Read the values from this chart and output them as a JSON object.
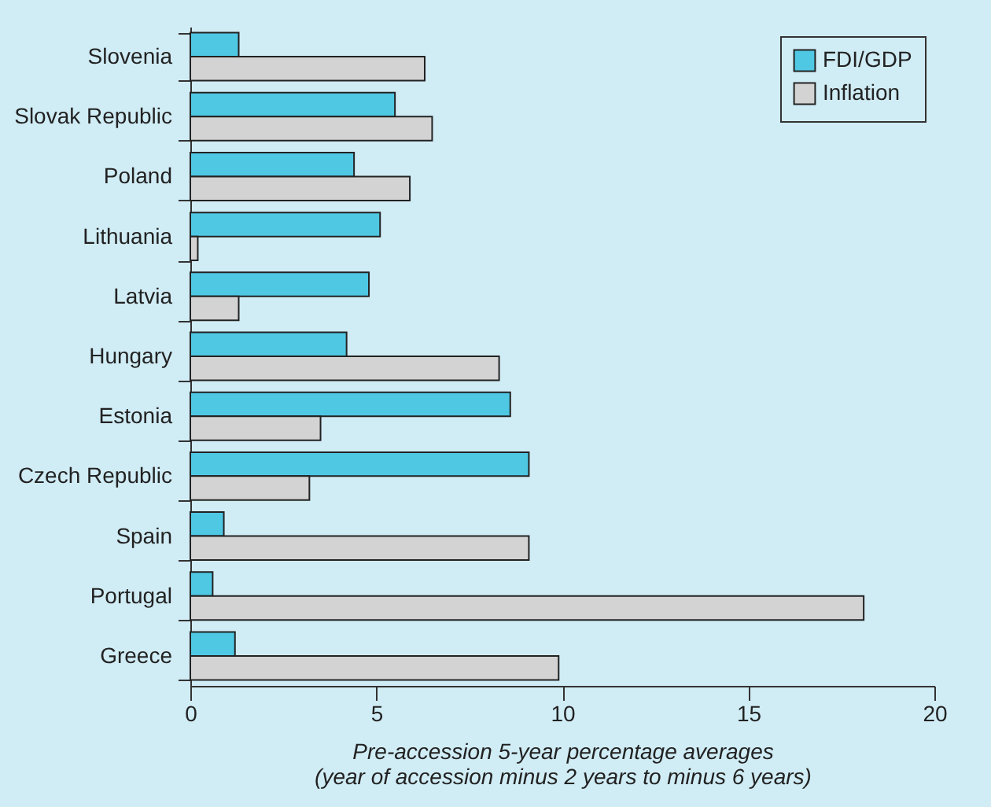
{
  "chart_data": {
    "type": "bar",
    "orientation": "horizontal",
    "categories": [
      "Slovenia",
      "Slovak Republic",
      "Poland",
      "Lithuania",
      "Latvia",
      "Hungary",
      "Estonia",
      "Czech Republic",
      "Spain",
      "Portugal",
      "Greece"
    ],
    "series": [
      {
        "name": "FDI/GDP",
        "color": "#4fc8e4",
        "values": [
          1.3,
          5.5,
          4.4,
          5.1,
          4.8,
          4.2,
          8.6,
          9.1,
          0.9,
          0.6,
          1.2
        ]
      },
      {
        "name": "Inflation",
        "color": "#d3d3d3",
        "values": [
          6.3,
          6.5,
          5.9,
          0.2,
          1.3,
          8.3,
          3.5,
          3.2,
          9.1,
          18.1,
          9.9
        ]
      }
    ],
    "xlabel": "Pre-accession 5-year percentage averages\n(year of accession minus 2 years to minus 6 years)",
    "xlim": [
      0,
      20
    ],
    "xticks": [
      0,
      5,
      10,
      15,
      20
    ],
    "grid": false,
    "legend": "top right"
  }
}
